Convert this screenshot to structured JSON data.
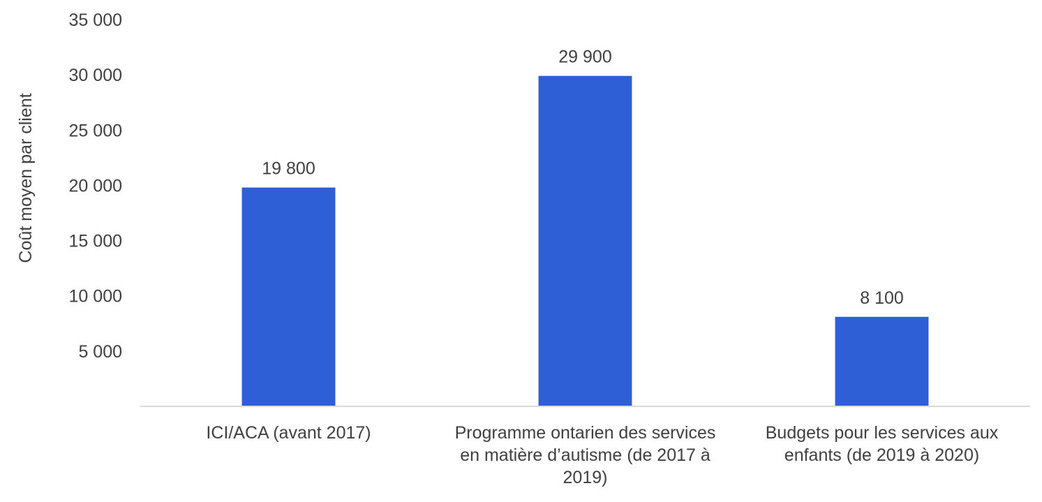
{
  "chart_data": {
    "type": "bar",
    "title": "",
    "xlabel": "",
    "ylabel": "Coût moyen par client",
    "categories": [
      [
        "ICI/ACA (avant 2017)"
      ],
      [
        "Programme ontarien des services",
        "en matière d’autisme (de 2017 à",
        "2019)"
      ],
      [
        "Budgets pour les services aux",
        "enfants (de 2019 à 2020)"
      ]
    ],
    "values": [
      19800,
      29900,
      8100
    ],
    "value_labels": [
      "19 800",
      "29 900",
      "8 100"
    ],
    "ylim": [
      0,
      35000
    ],
    "yticks": [
      5000,
      10000,
      15000,
      20000,
      25000,
      30000,
      35000
    ],
    "ytick_labels": [
      "5 000",
      "10 000",
      "15 000",
      "20 000",
      "25 000",
      "30 000",
      "35 000"
    ],
    "grid": false,
    "legend": "none",
    "colors": {
      "bar": "#2f5fd6",
      "axis": "#d9d9d9",
      "text": "#404040"
    }
  }
}
